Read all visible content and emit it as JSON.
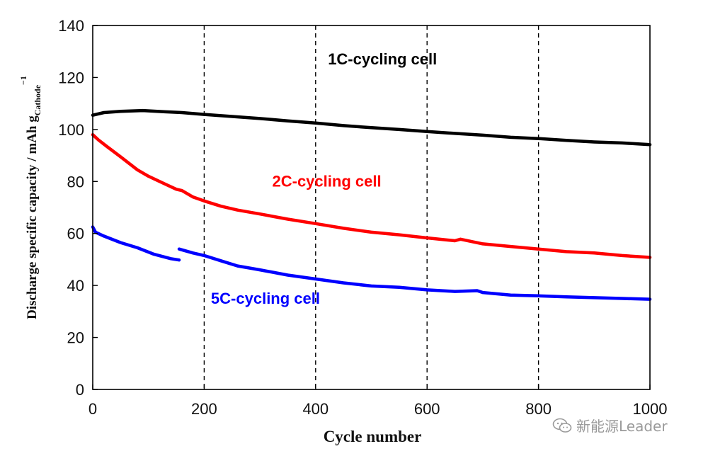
{
  "chart_data": {
    "type": "line",
    "title": "",
    "xlabel": "Cycle number",
    "ylabel": {
      "main": "Discharge specific capacity / mAh g",
      "subscript": "Cathode",
      "superscript": "−1"
    },
    "xlim": [
      0,
      1000
    ],
    "ylim": [
      0,
      140
    ],
    "xticks": [
      0,
      200,
      400,
      600,
      800,
      1000
    ],
    "yticks": [
      0,
      20,
      40,
      60,
      80,
      100,
      120,
      140
    ],
    "vertical_dashed_lines": [
      200,
      400,
      600,
      800
    ],
    "series": [
      {
        "name": "1C-cycling cell",
        "color": "#000000",
        "label_anchor": [
          520,
          125
        ],
        "points": [
          [
            0,
            105.5
          ],
          [
            20,
            106.5
          ],
          [
            50,
            107
          ],
          [
            90,
            107.3
          ],
          [
            130,
            106.8
          ],
          [
            160,
            106.5
          ],
          [
            200,
            105.8
          ],
          [
            250,
            105
          ],
          [
            300,
            104.2
          ],
          [
            350,
            103.3
          ],
          [
            400,
            102.5
          ],
          [
            450,
            101.5
          ],
          [
            500,
            100.7
          ],
          [
            550,
            100
          ],
          [
            600,
            99.2
          ],
          [
            650,
            98.5
          ],
          [
            700,
            97.8
          ],
          [
            750,
            97
          ],
          [
            800,
            96.5
          ],
          [
            850,
            95.8
          ],
          [
            900,
            95.2
          ],
          [
            950,
            94.8
          ],
          [
            1000,
            94.2
          ]
        ]
      },
      {
        "name": "2C-cycling cell",
        "color": "#ff0000",
        "label_anchor": [
          420,
          78
        ],
        "points": [
          [
            0,
            98
          ],
          [
            10,
            96
          ],
          [
            25,
            93.5
          ],
          [
            50,
            89.5
          ],
          [
            80,
            84.5
          ],
          [
            100,
            82
          ],
          [
            130,
            79
          ],
          [
            150,
            77
          ],
          [
            160,
            76.5
          ],
          [
            180,
            74
          ],
          [
            200,
            72.5
          ],
          [
            230,
            70.5
          ],
          [
            260,
            69
          ],
          [
            300,
            67.5
          ],
          [
            350,
            65.5
          ],
          [
            400,
            63.8
          ],
          [
            450,
            62
          ],
          [
            500,
            60.5
          ],
          [
            550,
            59.5
          ],
          [
            600,
            58.3
          ],
          [
            650,
            57.2
          ],
          [
            660,
            57.8
          ],
          [
            700,
            56
          ],
          [
            750,
            55
          ],
          [
            800,
            54
          ],
          [
            850,
            53
          ],
          [
            900,
            52.5
          ],
          [
            950,
            51.5
          ],
          [
            1000,
            50.8
          ]
        ]
      },
      {
        "name": "5C-cycling cell",
        "color": "#0000ff",
        "label_anchor": [
          310,
          33
        ],
        "segments": [
          [
            [
              0,
              62.5
            ],
            [
              5,
              60.5
            ],
            [
              20,
              59
            ],
            [
              50,
              56.5
            ],
            [
              80,
              54.5
            ],
            [
              110,
              52
            ],
            [
              140,
              50.3
            ],
            [
              155,
              49.8
            ]
          ],
          [
            [
              155,
              54
            ],
            [
              180,
              52.5
            ],
            [
              200,
              51.5
            ],
            [
              230,
              49.5
            ],
            [
              260,
              47.5
            ],
            [
              300,
              46
            ],
            [
              350,
              44
            ],
            [
              400,
              42.5
            ],
            [
              450,
              41
            ],
            [
              500,
              39.8
            ],
            [
              550,
              39.3
            ],
            [
              600,
              38.3
            ],
            [
              650,
              37.7
            ],
            [
              690,
              38
            ],
            [
              700,
              37.3
            ],
            [
              750,
              36.3
            ],
            [
              800,
              36
            ],
            [
              850,
              35.6
            ],
            [
              900,
              35.3
            ],
            [
              950,
              35
            ],
            [
              1000,
              34.7
            ]
          ]
        ]
      }
    ]
  },
  "watermark": {
    "text": "新能源Leader",
    "icon": "wechat-icon"
  }
}
